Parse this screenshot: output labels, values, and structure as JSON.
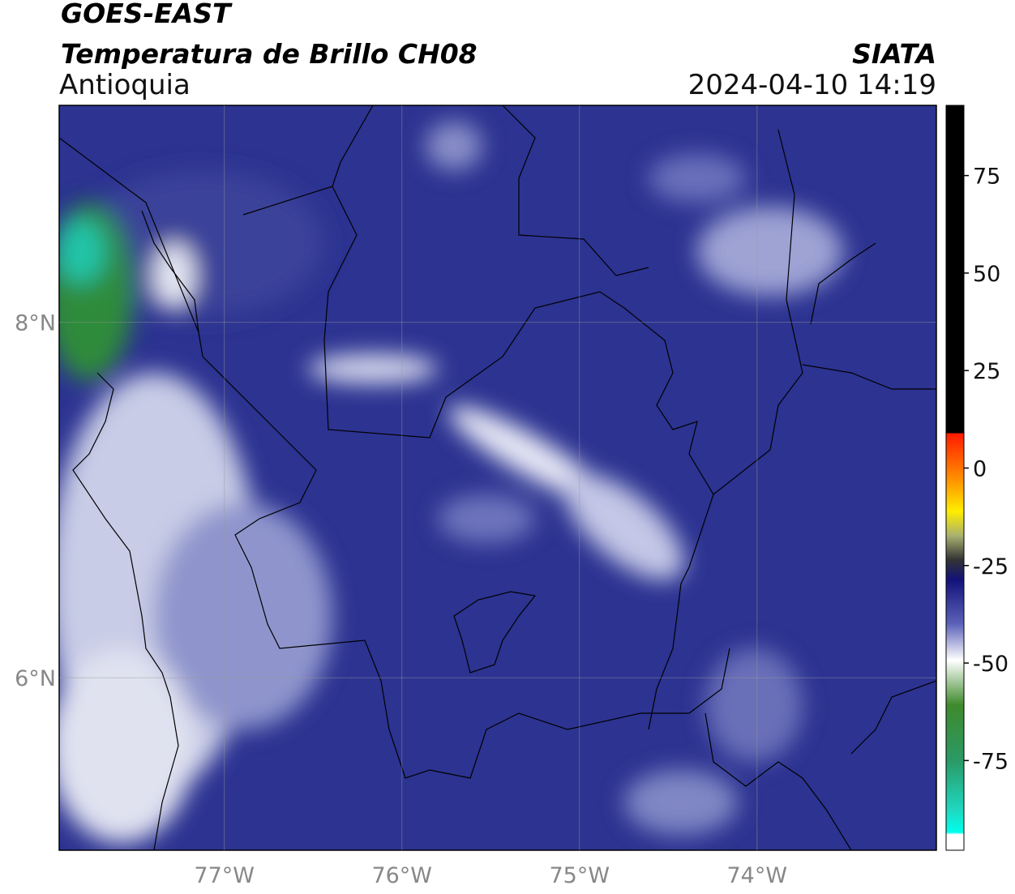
{
  "header": {
    "title": "GOES-EAST",
    "subtitle": "Temperatura de Brillo CH08",
    "region": "Antioquia",
    "source": "SIATA",
    "datetime": "2024-04-10 14:19"
  },
  "chart_data": {
    "type": "map",
    "xlim": [
      -77.93,
      -72.99
    ],
    "ylim": [
      5.03,
      9.22
    ],
    "xticks": [
      {
        "value": -77,
        "label": "77°W"
      },
      {
        "value": -76,
        "label": "76°W"
      },
      {
        "value": -75,
        "label": "75°W"
      },
      {
        "value": -74,
        "label": "74°W"
      }
    ],
    "yticks": [
      {
        "value": 6,
        "label": "6°N"
      },
      {
        "value": 8,
        "label": "8°N"
      }
    ],
    "grid": true,
    "colorbar": {
      "lim": [
        -98,
        93
      ],
      "ticks": [
        -75,
        -50,
        -25,
        0,
        25,
        50,
        75
      ]
    }
  }
}
